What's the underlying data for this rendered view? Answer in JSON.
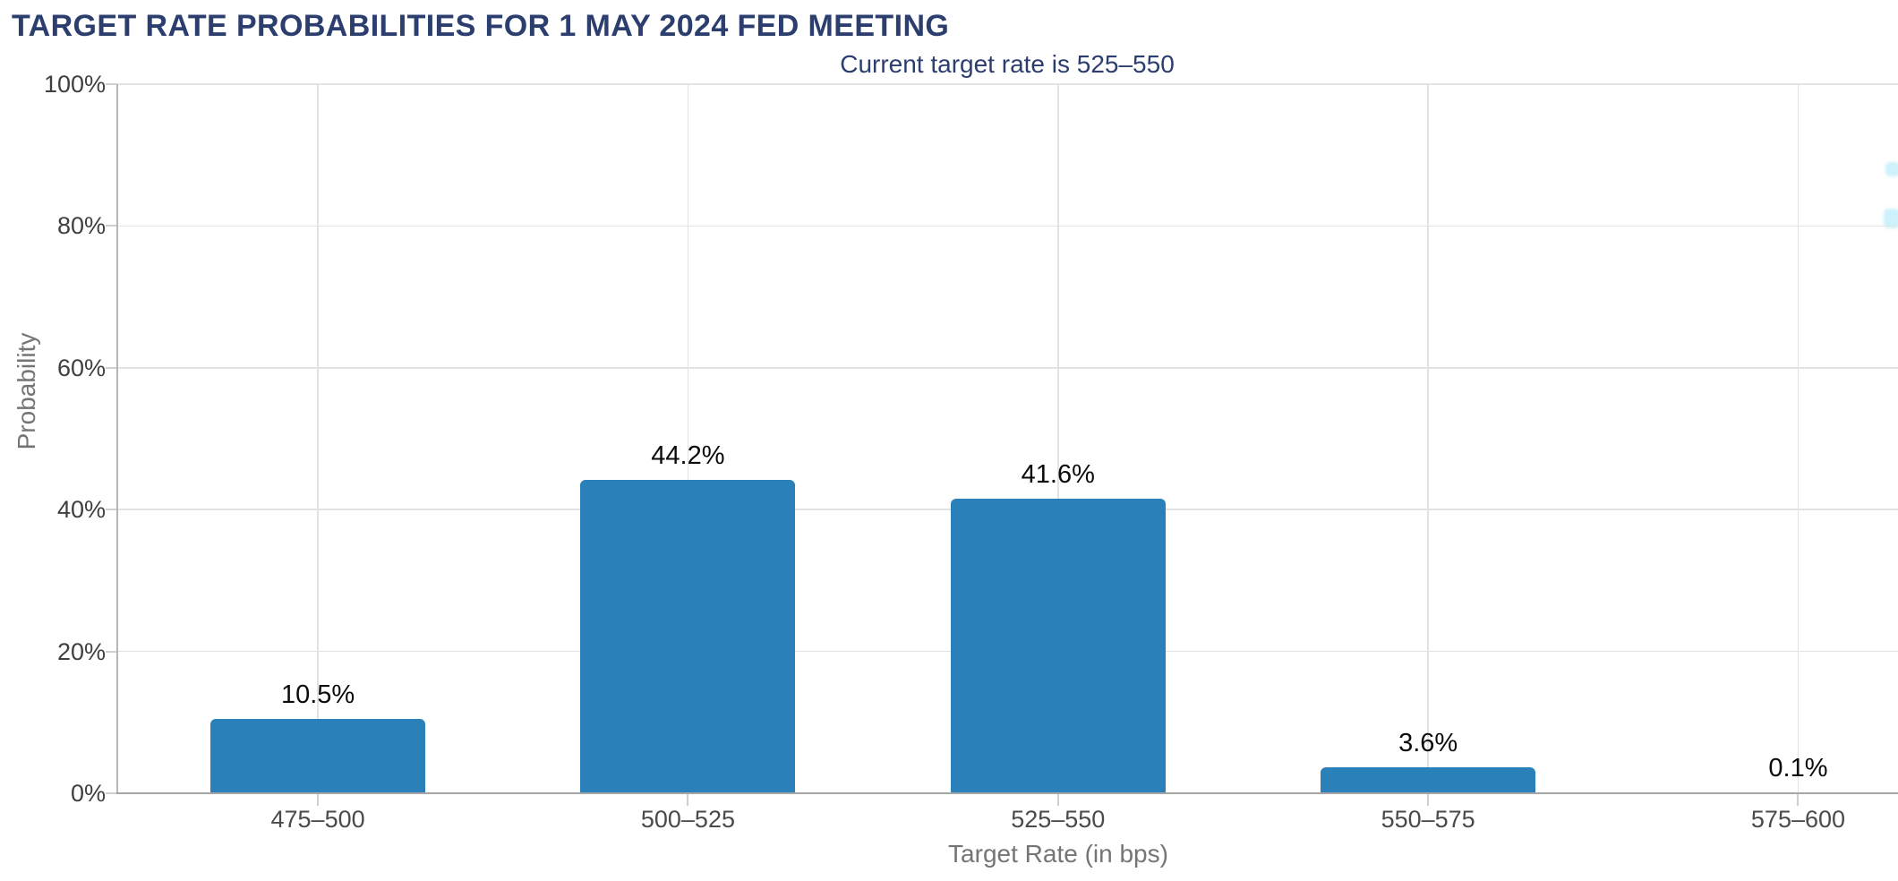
{
  "chart_data": {
    "type": "bar",
    "title": "TARGET RATE PROBABILITIES FOR 1 MAY 2024 FED MEETING",
    "subtitle": "Current target rate is 525–550",
    "xlabel": "Target Rate (in bps)",
    "ylabel": "Probability",
    "categories": [
      "475–500",
      "500–525",
      "525–550",
      "550–575",
      "575–600"
    ],
    "values": [
      10.5,
      44.2,
      41.6,
      3.6,
      0.1
    ],
    "value_labels": [
      "10.5%",
      "44.2%",
      "41.6%",
      "3.6%",
      "0.1%"
    ],
    "ylim": [
      0,
      100
    ],
    "ytick_values": [
      0,
      20,
      40,
      60,
      80,
      100
    ],
    "ytick_labels": [
      "0%",
      "20%",
      "40%",
      "60%",
      "80%",
      "100%"
    ],
    "grid": true,
    "legend_position": "none",
    "bar_color": "#2a80b9",
    "title_color": "#2b3e6e",
    "subtitle_color": "#2b3e6e"
  }
}
